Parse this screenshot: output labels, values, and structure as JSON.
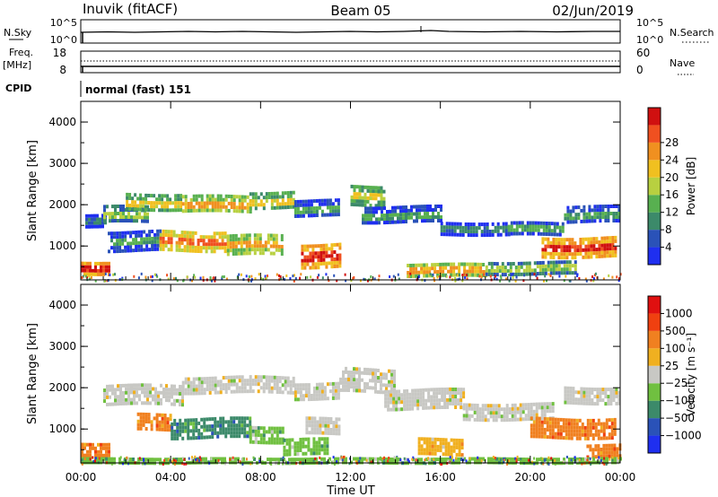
{
  "header": {
    "station": "Inuvik (fitACF)",
    "beam": "Beam 05",
    "date": "02/Jun/2019"
  },
  "top_panels": {
    "nsky_label": "N.Sky",
    "nsky_ticks": [
      "10^5",
      "10^0"
    ],
    "nsearch_label": "N.Search",
    "nsearch_ticks": [
      "10^5",
      "10^0"
    ],
    "freq_label": "Freq.",
    "freq_unit": "[MHz]",
    "freq_ticks": [
      "18",
      "8"
    ],
    "nave_label": "Nave",
    "nave_ticks": [
      "60",
      "0"
    ],
    "cpid_label": "CPID",
    "cpid_value": "normal (fast) 151"
  },
  "chart_data": [
    {
      "type": "heatmap",
      "name": "power",
      "ylabel": "Slant Range [km]",
      "ylim": [
        180,
        4500
      ],
      "yticks": [
        "1000",
        "2000",
        "3000",
        "4000"
      ],
      "xticks": [
        "00:00",
        "04:00",
        "08:00",
        "12:00",
        "16:00",
        "20:00",
        "00:00"
      ],
      "colorbar": {
        "label": "Power [dB]",
        "ticks": [
          "4",
          "8",
          "12",
          "16",
          "20",
          "24",
          "28"
        ],
        "colors": [
          "#1f2ff0",
          "#2a52b8",
          "#3c8a6a",
          "#58b050",
          "#b8d040",
          "#f0c020",
          "#f09020",
          "#f05020",
          "#d01010"
        ]
      },
      "bands": [
        {
          "t0": 0.0,
          "t1": 1.3,
          "r0": 350,
          "r1": 650,
          "level": 8
        },
        {
          "t0": 0.2,
          "t1": 1.1,
          "r0": 1500,
          "r1": 1800,
          "level": 2
        },
        {
          "t0": 1.0,
          "t1": 3.0,
          "r0": 1600,
          "r1": 2000,
          "level": 4
        },
        {
          "t0": 2.0,
          "t1": 4.5,
          "r0": 1900,
          "r1": 2300,
          "level": 5
        },
        {
          "t0": 4.5,
          "t1": 7.5,
          "r0": 1850,
          "r1": 2250,
          "level": 6
        },
        {
          "t0": 7.5,
          "t1": 9.5,
          "r0": 1900,
          "r1": 2350,
          "level": 5
        },
        {
          "t0": 1.2,
          "t1": 3.5,
          "r0": 900,
          "r1": 1400,
          "level": 3
        },
        {
          "t0": 3.5,
          "t1": 6.5,
          "r0": 900,
          "r1": 1400,
          "level": 7
        },
        {
          "t0": 6.5,
          "t1": 9.0,
          "r0": 800,
          "r1": 1300,
          "level": 6
        },
        {
          "t0": 9.8,
          "t1": 11.5,
          "r0": 500,
          "r1": 1100,
          "level": 8
        },
        {
          "t0": 9.5,
          "t1": 11.5,
          "r0": 1750,
          "r1": 2150,
          "level": 3
        },
        {
          "t0": 12.0,
          "t1": 13.5,
          "r0": 2000,
          "r1": 2500,
          "level": 5
        },
        {
          "t0": 12.5,
          "t1": 16.0,
          "r0": 1550,
          "r1": 2000,
          "level": 3
        },
        {
          "t0": 16.0,
          "t1": 19.0,
          "r0": 1300,
          "r1": 1600,
          "level": 2
        },
        {
          "t0": 19.0,
          "t1": 21.5,
          "r0": 1250,
          "r1": 1600,
          "level": 3
        },
        {
          "t0": 20.5,
          "t1": 23.8,
          "r0": 750,
          "r1": 1250,
          "level": 8
        },
        {
          "t0": 21.5,
          "t1": 24.0,
          "r0": 1600,
          "r1": 2000,
          "level": 3
        },
        {
          "t0": 14.5,
          "t1": 18.0,
          "r0": 300,
          "r1": 600,
          "level": 6
        },
        {
          "t0": 18.0,
          "t1": 22.0,
          "r0": 300,
          "r1": 650,
          "level": 4
        }
      ]
    },
    {
      "type": "heatmap",
      "name": "velocity",
      "ylabel": "Slant Range [km]",
      "ylim": [
        180,
        4500
      ],
      "yticks": [
        "1000",
        "2000",
        "3000",
        "4000"
      ],
      "xticks": [
        "00:00",
        "04:00",
        "08:00",
        "12:00",
        "16:00",
        "20:00",
        "00:00"
      ],
      "xlabel": "Time UT",
      "colorbar": {
        "label": "Velocity [m s⁻¹]",
        "ticks": [
          "1000",
          "500",
          "100",
          "25",
          "−25",
          "−100",
          "−500",
          "−1000"
        ],
        "colors": [
          "#1f2ff0",
          "#2a52b8",
          "#3c8a6a",
          "#70c040",
          "#c8c8c4",
          "#f0b020",
          "#f08020",
          "#f04010",
          "#e01010"
        ]
      },
      "bands": [
        {
          "t0": 0.0,
          "t1": 1.3,
          "r0": 350,
          "r1": 700,
          "level": 6
        },
        {
          "t0": 1.0,
          "t1": 4.5,
          "r0": 1600,
          "r1": 2100,
          "level": 4
        },
        {
          "t0": 4.5,
          "t1": 9.5,
          "r0": 1850,
          "r1": 2300,
          "level": 4
        },
        {
          "t0": 9.5,
          "t1": 11.5,
          "r0": 1750,
          "r1": 2150,
          "level": 4
        },
        {
          "t0": 11.5,
          "t1": 14.0,
          "r0": 1900,
          "r1": 2500,
          "level": 4
        },
        {
          "t0": 13.5,
          "t1": 17.0,
          "r0": 1500,
          "r1": 2000,
          "level": 4
        },
        {
          "t0": 17.0,
          "t1": 21.0,
          "r0": 1250,
          "r1": 1650,
          "level": 4
        },
        {
          "t0": 21.5,
          "t1": 24.0,
          "r0": 1600,
          "r1": 2050,
          "level": 4
        },
        {
          "t0": 2.5,
          "t1": 4.0,
          "r0": 1000,
          "r1": 1400,
          "level": 6
        },
        {
          "t0": 4.0,
          "t1": 7.5,
          "r0": 800,
          "r1": 1300,
          "level": 2
        },
        {
          "t0": 7.5,
          "t1": 9.0,
          "r0": 700,
          "r1": 1100,
          "level": 3
        },
        {
          "t0": 9.0,
          "t1": 11.0,
          "r0": 400,
          "r1": 800,
          "level": 3
        },
        {
          "t0": 10.0,
          "t1": 11.5,
          "r0": 900,
          "r1": 1300,
          "level": 4
        },
        {
          "t0": 15.0,
          "t1": 17.0,
          "r0": 400,
          "r1": 800,
          "level": 5
        },
        {
          "t0": 20.0,
          "t1": 23.8,
          "r0": 800,
          "r1": 1300,
          "level": 6
        },
        {
          "t0": 22.5,
          "t1": 24.0,
          "r0": 350,
          "r1": 650,
          "level": 6
        },
        {
          "t0": 0.0,
          "t1": 24.0,
          "r0": 180,
          "r1": 320,
          "level": 3
        }
      ]
    }
  ]
}
